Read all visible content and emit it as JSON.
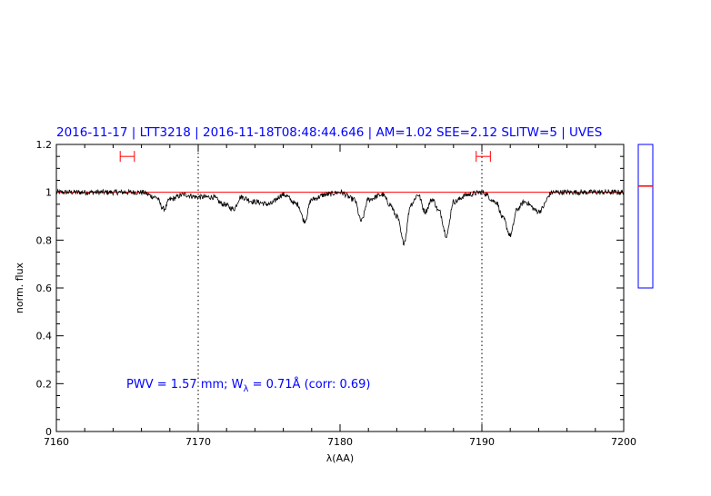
{
  "chart_data": {
    "type": "line",
    "title": "2016-11-17 | LTT3218 | 2016-11-18T08:48:44.646 | AM=1.02 SEE=2.12 SLITW=5 | UVES",
    "xlabel": "λ(AA)",
    "ylabel": "norm. flux",
    "xlim": [
      7160,
      7200
    ],
    "ylim": [
      0,
      1.2
    ],
    "x_ticks": [
      7160,
      7170,
      7180,
      7190,
      7200
    ],
    "x_tick_labels": [
      "7160",
      "7170",
      "7180",
      "7190",
      "7200"
    ],
    "y_ticks": [
      0,
      0.2,
      0.4,
      0.6,
      0.8,
      1,
      1.2
    ],
    "y_tick_labels": [
      "0",
      "0.2",
      "0.4",
      "0.6",
      "0.8",
      "1",
      "1.2"
    ],
    "grid": false,
    "reference_level": 1.0,
    "vertical_markers": [
      7170,
      7190
    ],
    "continuum_windows": [
      {
        "from": 7164.5,
        "to": 7165.5,
        "y": 1.15
      },
      {
        "from": 7189.6,
        "to": 7190.6,
        "y": 1.15
      }
    ],
    "series": [
      {
        "color": "#000000",
        "x": [
          7160,
          7161,
          7162,
          7163,
          7164,
          7165,
          7166,
          7167,
          7167.6,
          7168,
          7169,
          7170,
          7171,
          7171.8,
          7172.5,
          7173,
          7174,
          7175,
          7176,
          7177,
          7177.5,
          7178,
          7179,
          7180,
          7181,
          7181.5,
          7182,
          7183,
          7183.5,
          7184,
          7184.5,
          7185,
          7185.5,
          7186,
          7186.5,
          7187,
          7187.5,
          7188,
          7189,
          7190,
          7191,
          7191.5,
          7192,
          7192.5,
          7193,
          7194,
          7195,
          7196,
          7197,
          7198,
          7199,
          7200
        ],
        "y": [
          1.0,
          1.0,
          1.0,
          1.0,
          1.0,
          1.0,
          1.0,
          0.98,
          0.93,
          0.97,
          0.99,
          0.98,
          0.98,
          0.95,
          0.93,
          0.98,
          0.96,
          0.95,
          0.99,
          0.95,
          0.88,
          0.97,
          0.99,
          1.0,
          0.97,
          0.88,
          0.97,
          0.99,
          0.95,
          0.9,
          0.79,
          0.95,
          0.99,
          0.92,
          0.97,
          0.92,
          0.82,
          0.96,
          0.99,
          1.0,
          0.96,
          0.89,
          0.82,
          0.93,
          0.96,
          0.92,
          1.0,
          1.0,
          1.0,
          1.0,
          1.0,
          1.0
        ]
      }
    ],
    "annotation": {
      "prefix": "PWV  =  1.57  mm;  W",
      "subscript": "λ",
      "suffix": "  =  0.71Å  (corr:  0.69)"
    },
    "side_gauge": {
      "range": [
        0,
        1
      ],
      "value": 0.71,
      "border_color": "#0000ff",
      "marker_color": "#ff0000"
    },
    "colors": {
      "title": "#0000ff",
      "annotation": "#0000ff",
      "spectrum": "#000000",
      "reference_line": "#ff0000",
      "continuum_windows": "#ff0000",
      "markers": "#000000"
    }
  }
}
